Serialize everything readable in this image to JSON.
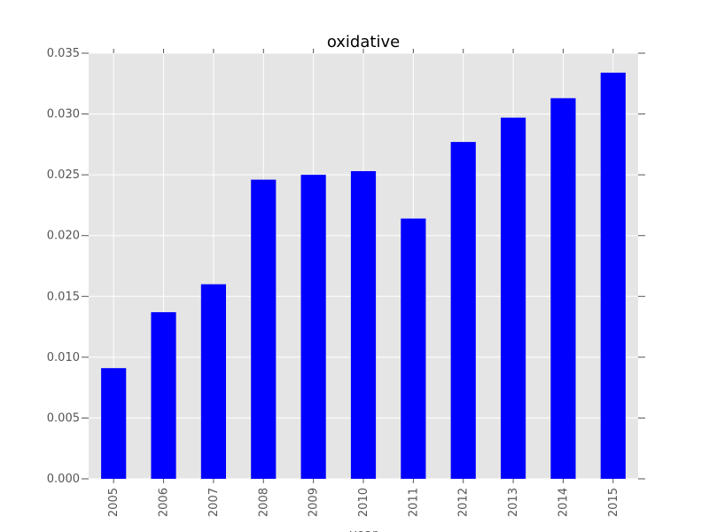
{
  "chart_data": {
    "type": "bar",
    "title": "oxidative",
    "xlabel": "year",
    "ylabel": "",
    "categories": [
      "2005",
      "2006",
      "2007",
      "2008",
      "2009",
      "2010",
      "2011",
      "2012",
      "2013",
      "2014",
      "2015"
    ],
    "values": [
      0.0091,
      0.0137,
      0.016,
      0.0246,
      0.025,
      0.0253,
      0.0214,
      0.0277,
      0.0297,
      0.0313,
      0.0334
    ],
    "ylim": [
      0,
      0.035
    ],
    "yticks": [
      "0.000",
      "0.005",
      "0.010",
      "0.015",
      "0.020",
      "0.025",
      "0.030",
      "0.035"
    ],
    "grid": true,
    "legend": "none",
    "colors": {
      "bar": "#0000ff",
      "plot_background": "#e5e5e5",
      "grid": "#ffffff",
      "text": "#555555"
    }
  }
}
